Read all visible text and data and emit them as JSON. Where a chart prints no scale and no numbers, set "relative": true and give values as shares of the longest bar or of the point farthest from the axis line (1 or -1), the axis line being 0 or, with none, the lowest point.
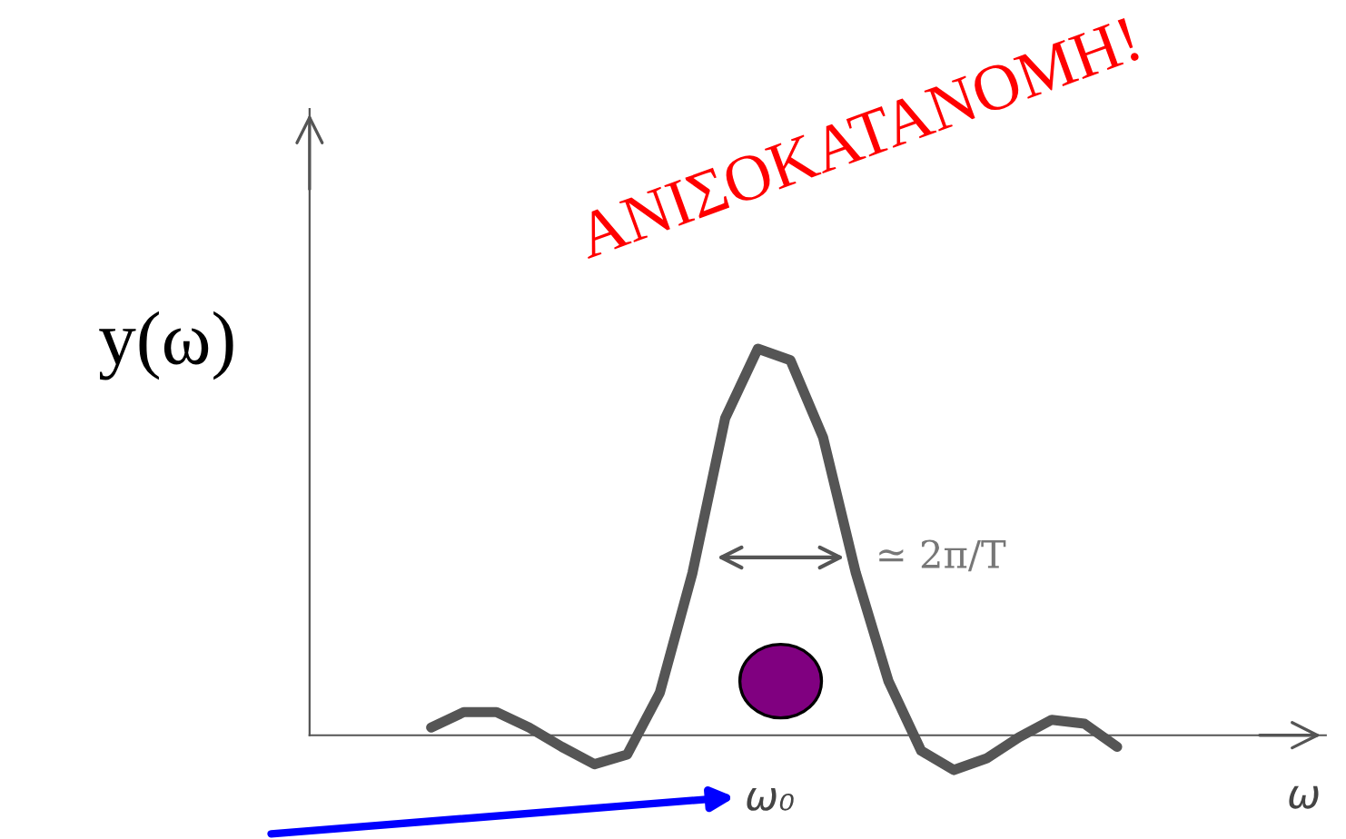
{
  "chart_data": {
    "type": "line",
    "relative": true,
    "ylabel": "y(ω)",
    "xlabel": "ω",
    "categories": [
      null,
      null,
      null,
      null,
      null,
      null,
      null,
      null,
      null,
      null,
      null,
      null,
      null,
      null,
      null,
      null,
      null,
      null,
      null,
      null,
      null,
      null
    ],
    "series": [
      {
        "color": "#555555",
        "values": [
          0.02,
          0.06,
          0.06,
          0.02,
          -0.03,
          -0.075,
          -0.05,
          0.11,
          0.42,
          0.82,
          1,
          0.97,
          0.77,
          0.42,
          0.14,
          -0.04,
          -0.09,
          -0.06,
          -0.005,
          0.04,
          0.03,
          -0.03
        ]
      }
    ],
    "annotations": [
      "ΑΝΙΣΟΚΑΤΑΝΟΜΗ!",
      "≃ 2π/T",
      "ω₀"
    ],
    "marker": "none",
    "line_style": "solid",
    "legend": false
  }
}
